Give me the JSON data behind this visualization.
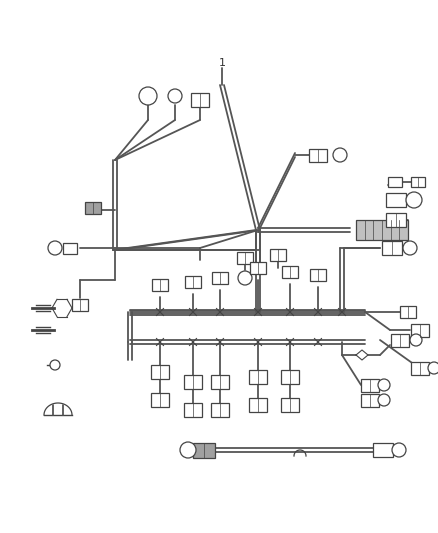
{
  "bg_color": "#ffffff",
  "line_color": "#555555",
  "connector_color": "#444444",
  "figsize": [
    4.38,
    5.33
  ],
  "dpi": 100,
  "label_1": "1"
}
